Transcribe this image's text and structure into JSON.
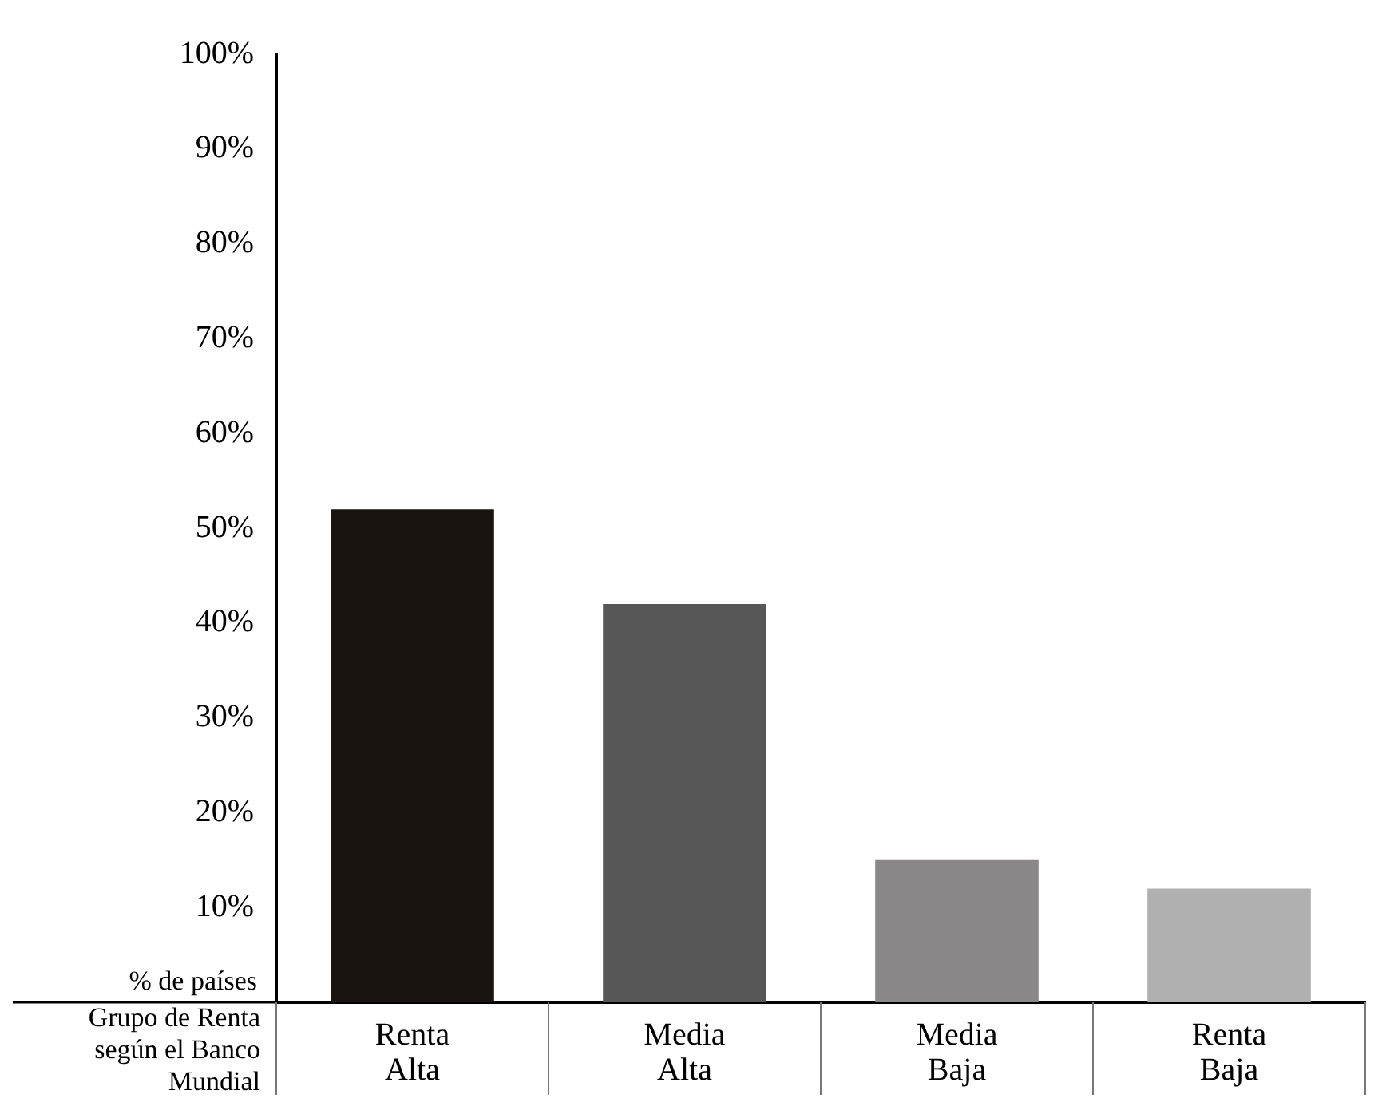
{
  "chart_data": {
    "type": "bar",
    "xlabel": "Grupo de Renta según el Banco Mundial",
    "ylabel": "% de países",
    "categories": [
      "Renta Alta",
      "Media Alta",
      "Media Baja",
      "Renta Baja"
    ],
    "values": [
      52,
      42,
      15,
      12
    ],
    "colors": [
      "#1a1411",
      "#575757",
      "#8a8788",
      "#b0b0b0"
    ],
    "ylim": [
      0,
      100
    ],
    "yticks": [
      {
        "value": 10,
        "label": "10%"
      },
      {
        "value": 20,
        "label": "20%"
      },
      {
        "value": 30,
        "label": "30%"
      },
      {
        "value": 40,
        "label": "40%"
      },
      {
        "value": 50,
        "label": "50%"
      },
      {
        "value": 60,
        "label": "60%"
      },
      {
        "value": 70,
        "label": "70%"
      },
      {
        "value": 80,
        "label": "80%"
      },
      {
        "value": 90,
        "label": "90%"
      },
      {
        "value": 100,
        "label": "100%"
      }
    ],
    "grid": false,
    "legend": false
  }
}
